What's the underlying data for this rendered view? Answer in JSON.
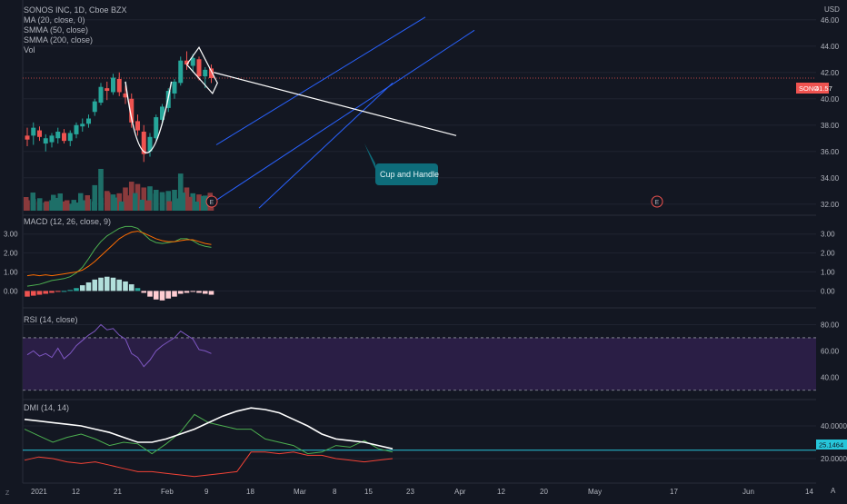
{
  "colors": {
    "background": "#131722",
    "grid": "#1f2330",
    "up": "#26a69a",
    "down": "#ef5350",
    "channel": "#2962ff",
    "trend_white": "#ffffff",
    "macd_line": "#4caf50",
    "signal_line": "#ff6d00",
    "rsi_line": "#7e57c2",
    "rsi_band": "#2a1e45",
    "dmi_adx": "#ffffff",
    "dmi_plus": "#4caf50",
    "dmi_minus": "#f44336",
    "hline": "#26c6da",
    "callout_bg": "#0e6c7a"
  },
  "header": {
    "title": "SONOS INC, 1D, Cboe BZX",
    "indicators": [
      "MA (20, close, 0)",
      "SMMA (50, close)",
      "SMMA (200, close)",
      "Vol"
    ]
  },
  "price_axis": {
    "currency": "USD",
    "label": "SONO",
    "value": "41.57"
  },
  "annotation": {
    "text": "Cup and Handle"
  },
  "earnings_marker": "E",
  "macd_panel": {
    "legend": "MACD (12, 26, close, 9)"
  },
  "rsi_panel": {
    "legend": "RSI (14, close)"
  },
  "dmi_panel": {
    "legend": "DMI (14, 14)",
    "line_value": "25.1464"
  },
  "corner_label": "A",
  "left_corner": "Z",
  "chart_data": [
    {
      "type": "candlestick",
      "panel": "price",
      "y_ticks": [
        "46.00",
        "44.00",
        "42.00",
        "40.00",
        "38.00",
        "36.00",
        "34.00",
        "32.00"
      ],
      "ylim": [
        31.5,
        47.5
      ],
      "x_ticks": [
        "2021",
        "12",
        "21",
        "Feb",
        "9",
        "18",
        "Mar",
        "8",
        "15",
        "23",
        "Apr",
        "12",
        "20",
        "May",
        "17",
        "Jun",
        "14"
      ],
      "ohlc": [
        [
          37.2,
          37.8,
          36.4,
          36.9
        ],
        [
          37.2,
          38.2,
          36.5,
          37.8
        ],
        [
          37.6,
          37.9,
          36.8,
          37.1
        ],
        [
          36.6,
          37.3,
          36.0,
          37.0
        ],
        [
          36.7,
          37.4,
          36.3,
          37.2
        ],
        [
          37.0,
          37.8,
          36.6,
          37.5
        ],
        [
          37.4,
          37.7,
          36.6,
          36.8
        ],
        [
          36.8,
          37.6,
          36.4,
          37.4
        ],
        [
          37.3,
          38.2,
          37.0,
          38.0
        ],
        [
          37.9,
          38.5,
          37.5,
          38.1
        ],
        [
          38.1,
          38.8,
          37.8,
          38.5
        ],
        [
          39.0,
          40.0,
          38.7,
          39.8
        ],
        [
          39.7,
          41.2,
          39.5,
          40.9
        ],
        [
          40.8,
          41.3,
          39.9,
          40.6
        ],
        [
          40.5,
          41.9,
          40.3,
          41.6
        ],
        [
          41.5,
          42.0,
          40.2,
          40.5
        ],
        [
          40.4,
          41.0,
          39.6,
          40.1
        ],
        [
          40.0,
          40.4,
          37.8,
          38.2
        ],
        [
          38.3,
          38.8,
          37.2,
          37.6
        ],
        [
          37.5,
          38.0,
          35.2,
          35.8
        ],
        [
          36.0,
          37.4,
          35.6,
          37.1
        ],
        [
          37.0,
          38.8,
          36.8,
          38.6
        ],
        [
          38.4,
          39.6,
          38.0,
          39.4
        ],
        [
          39.3,
          40.8,
          39.0,
          40.6
        ],
        [
          40.4,
          41.5,
          40.0,
          41.3
        ],
        [
          41.2,
          43.2,
          41.0,
          42.9
        ],
        [
          42.9,
          43.6,
          42.2,
          42.6
        ],
        [
          42.5,
          43.4,
          42.0,
          43.1
        ],
        [
          43.0,
          43.2,
          41.4,
          41.7
        ],
        [
          41.7,
          42.4,
          40.8,
          42.2
        ],
        [
          42.3,
          42.6,
          41.2,
          41.57
        ]
      ],
      "volume": [
        0.9,
        1.0,
        0.8,
        0.7,
        0.9,
        1.1,
        0.8,
        0.6,
        0.7,
        0.9,
        1.0,
        2.2,
        3.6,
        1.7,
        1.4,
        1.5,
        2.0,
        2.5,
        2.3,
        2.0,
        2.1,
        1.8,
        1.6,
        1.7,
        1.8,
        3.2,
        2.0,
        1.5,
        1.4,
        1.3,
        1.2
      ]
    },
    {
      "type": "line",
      "panel": "macd",
      "y_ticks": [
        "3.00",
        "2.00",
        "1.00",
        "0.00"
      ],
      "ylim": [
        -0.7,
        3.8
      ],
      "series": [
        {
          "key": "macd",
          "values": [
            0.25,
            0.3,
            0.35,
            0.45,
            0.55,
            0.6,
            0.65,
            0.75,
            0.95,
            1.25,
            1.7,
            2.2,
            2.6,
            2.9,
            3.1,
            3.3,
            3.4,
            3.4,
            3.3,
            3.0,
            2.7,
            2.55,
            2.5,
            2.55,
            2.6,
            2.75,
            2.75,
            2.65,
            2.45,
            2.35,
            2.3
          ]
        },
        {
          "key": "signal",
          "values": [
            0.8,
            0.85,
            0.8,
            0.85,
            0.8,
            0.85,
            0.9,
            0.95,
            1.0,
            1.1,
            1.3,
            1.55,
            1.85,
            2.15,
            2.45,
            2.75,
            2.95,
            3.1,
            3.15,
            3.05,
            2.9,
            2.75,
            2.65,
            2.6,
            2.6,
            2.65,
            2.7,
            2.7,
            2.6,
            2.5,
            2.45
          ]
        },
        {
          "key": "histogram",
          "values": [
            -0.3,
            -0.25,
            -0.2,
            -0.15,
            -0.1,
            -0.05,
            0.0,
            0.05,
            0.15,
            0.3,
            0.45,
            0.6,
            0.7,
            0.75,
            0.7,
            0.6,
            0.5,
            0.35,
            0.15,
            -0.1,
            -0.3,
            -0.45,
            -0.5,
            -0.4,
            -0.3,
            -0.15,
            -0.1,
            -0.05,
            -0.1,
            -0.15,
            -0.2
          ]
        }
      ]
    },
    {
      "type": "line",
      "panel": "rsi",
      "y_ticks": [
        "80.00",
        "60.00",
        "40.00"
      ],
      "ylim": [
        25,
        90
      ],
      "band": [
        30,
        70
      ],
      "series": [
        {
          "key": "rsi",
          "values": [
            57,
            60,
            56,
            58,
            55,
            62,
            54,
            58,
            64,
            68,
            72,
            75,
            80,
            76,
            77,
            72,
            69,
            58,
            55,
            48,
            53,
            60,
            64,
            67,
            70,
            75,
            72,
            69,
            61,
            60,
            58
          ]
        }
      ]
    },
    {
      "type": "line",
      "panel": "dmi",
      "y_ticks": [
        "40.0000",
        "20.0000"
      ],
      "ylim": [
        5,
        55
      ],
      "hline": 25.1464,
      "series": [
        {
          "key": "adx",
          "values": [
            44,
            43,
            42,
            41,
            40,
            38,
            36,
            33,
            30,
            30,
            32,
            35,
            38,
            42,
            46,
            49,
            51,
            50,
            48,
            44,
            40,
            35,
            32,
            31,
            30,
            28,
            26
          ]
        },
        {
          "key": "plus_di",
          "values": [
            38,
            34,
            30,
            33,
            35,
            32,
            28,
            30,
            29,
            23,
            29,
            36,
            47,
            42,
            40,
            38,
            38,
            32,
            30,
            28,
            23,
            24,
            28,
            27,
            31,
            26,
            24
          ]
        },
        {
          "key": "minus_di",
          "values": [
            19,
            21,
            20,
            18,
            17,
            18,
            16,
            14,
            12,
            12,
            11,
            10,
            9,
            10,
            11,
            12,
            24,
            24,
            23,
            24,
            22,
            22,
            20,
            19,
            18,
            19,
            20
          ]
        }
      ]
    }
  ]
}
